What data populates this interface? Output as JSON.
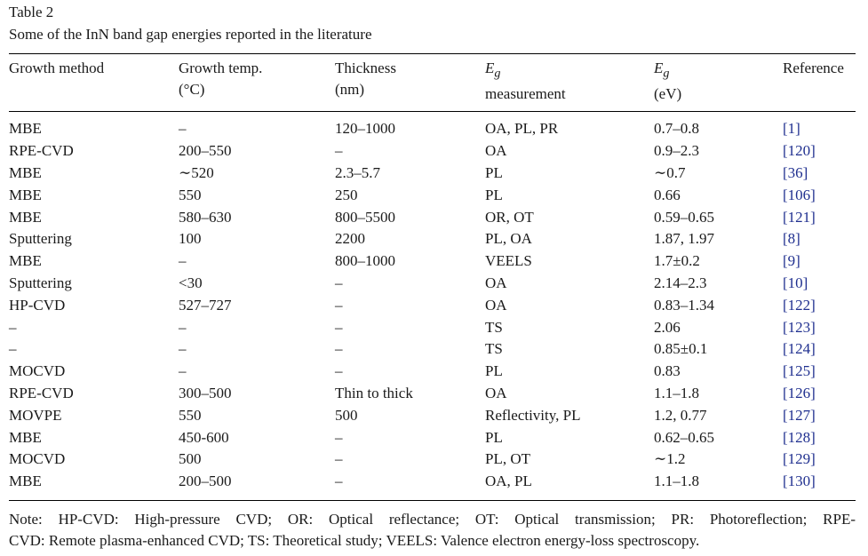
{
  "caption": {
    "label": "Table 2",
    "title": "Some of the InN band gap energies reported in the literature"
  },
  "headers": [
    {
      "line1": "Growth method",
      "line2": ""
    },
    {
      "line1": "Growth temp.",
      "line2": "(°C)"
    },
    {
      "line1": "Thickness",
      "line2": "(nm)"
    },
    {
      "symbol": "E",
      "sub": "g",
      "line2": "measurement"
    },
    {
      "symbol": "E",
      "sub": "g",
      "line2": "(eV)"
    },
    {
      "line1": "Reference",
      "line2": ""
    }
  ],
  "rows": [
    {
      "method": "MBE",
      "temp": "–",
      "thickness": "120–1000",
      "measurement": "OA, PL, PR",
      "eg": "0.7–0.8",
      "ref": "[1]"
    },
    {
      "method": "RPE-CVD",
      "temp": "200–550",
      "thickness": "–",
      "measurement": "OA",
      "eg": "0.9–2.3",
      "ref": "[120]"
    },
    {
      "method": "MBE",
      "temp": "∼520",
      "thickness": "2.3–5.7",
      "measurement": "PL",
      "eg": "∼0.7",
      "ref": "[36]"
    },
    {
      "method": "MBE",
      "temp": "550",
      "thickness": "250",
      "measurement": "PL",
      "eg": "0.66",
      "ref": "[106]"
    },
    {
      "method": "MBE",
      "temp": "580–630",
      "thickness": "800–5500",
      "measurement": "OR, OT",
      "eg": "0.59–0.65",
      "ref": "[121]"
    },
    {
      "method": "Sputtering",
      "temp": "100",
      "thickness": "2200",
      "measurement": "PL, OA",
      "eg": "1.87, 1.97",
      "ref": "[8]"
    },
    {
      "method": "MBE",
      "temp": "–",
      "thickness": "800–1000",
      "measurement": "VEELS",
      "eg": "1.7±0.2",
      "ref": "[9]"
    },
    {
      "method": "Sputtering",
      "temp": "<30",
      "thickness": "–",
      "measurement": "OA",
      "eg": "2.14–2.3",
      "ref": "[10]"
    },
    {
      "method": "HP-CVD",
      "temp": "527–727",
      "thickness": "–",
      "measurement": "OA",
      "eg": "0.83–1.34",
      "ref": "[122]"
    },
    {
      "method": "–",
      "temp": "–",
      "thickness": "–",
      "measurement": "TS",
      "eg": "2.06",
      "ref": "[123]"
    },
    {
      "method": "–",
      "temp": "–",
      "thickness": "–",
      "measurement": "TS",
      "eg": "0.85±0.1",
      "ref": "[124]"
    },
    {
      "method": "MOCVD",
      "temp": "–",
      "thickness": "–",
      "measurement": "PL",
      "eg": "0.83",
      "ref": "[125]"
    },
    {
      "method": "RPE-CVD",
      "temp": "300–500",
      "thickness": "Thin to thick",
      "measurement": "OA",
      "eg": "1.1–1.8",
      "ref": "[126]"
    },
    {
      "method": "MOVPE",
      "temp": "550",
      "thickness": "500",
      "measurement": "Reflectivity, PL",
      "eg": "1.2, 0.77",
      "ref": "[127]"
    },
    {
      "method": "MBE",
      "temp": "450-600",
      "thickness": "–",
      "measurement": "PL",
      "eg": "0.62–0.65",
      "ref": "[128]"
    },
    {
      "method": "MOCVD",
      "temp": "500",
      "thickness": "–",
      "measurement": "PL, OT",
      "eg": "∼1.2",
      "ref": "[129]"
    },
    {
      "method": "MBE",
      "temp": "200–500",
      "thickness": "–",
      "measurement": "OA, PL",
      "eg": "1.1–1.8",
      "ref": "[130]"
    }
  ],
  "note": {
    "line1": "Note: HP-CVD: High-pressure CVD; OR: Optical reflectance; OT: Optical transmission; PR: Photoreflection; RPE-",
    "line2": "CVD: Remote plasma-enhanced CVD; TS: Theoretical study; VEELS: Valence electron energy-loss spectroscopy."
  },
  "colors": {
    "text": "#1a1a1a",
    "reference_link": "#1f2f8f",
    "rule": "#000000"
  }
}
